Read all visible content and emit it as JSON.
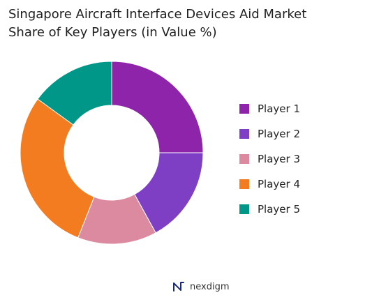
{
  "title_lines": [
    "Singapore Aircraft Interface Devices Aid Market",
    "Share of Key Players (in Value %)"
  ],
  "chart_data": {
    "type": "pie",
    "variant": "donut",
    "title": "Singapore Aircraft Interface Devices Aid Market Share of Key Players (in Value %)",
    "categories": [
      "Player 1",
      "Player 2",
      "Player 3",
      "Player 4",
      "Player 5"
    ],
    "values": [
      25,
      17,
      14,
      29,
      15
    ],
    "colors": [
      "#8e24aa",
      "#7e3fc5",
      "#dc8aa0",
      "#f47c20",
      "#009688"
    ],
    "legend": "right",
    "start": "top",
    "direction": "clockwise"
  },
  "legend": {
    "items": [
      {
        "label": "Player 1",
        "color": "#8e24aa"
      },
      {
        "label": "Player 2",
        "color": "#7e3fc5"
      },
      {
        "label": "Player 3",
        "color": "#dc8aa0"
      },
      {
        "label": "Player 4",
        "color": "#f47c20"
      },
      {
        "label": "Player 5",
        "color": "#009688"
      }
    ]
  },
  "brand": {
    "name": "nexdigm",
    "icon": "nexdigm-logo-icon",
    "color": "#1a2a7a"
  }
}
